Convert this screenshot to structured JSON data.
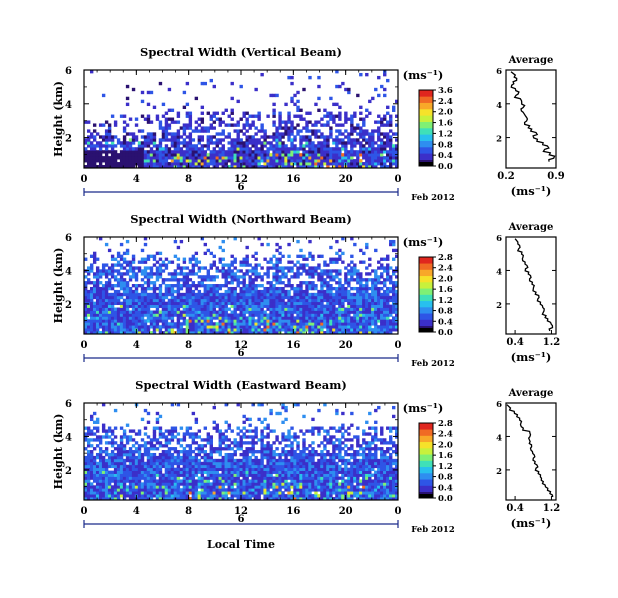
{
  "figure": {
    "xlabel": "Local Time",
    "date_label": "Feb 2012",
    "day_label": "6",
    "colorbar_unit": "(ms⁻¹)"
  },
  "chart_data": [
    {
      "type": "heatmap",
      "title": "Spectral Width (Vertical Beam)",
      "ylabel": "Height (km)",
      "xlim": [
        0,
        24
      ],
      "ylim": [
        0.2,
        6
      ],
      "x_ticks": [
        "0",
        "4",
        "8",
        "12",
        "16",
        "20",
        "0"
      ],
      "y_ticks": [
        "6",
        "4",
        "2"
      ],
      "colorbar": {
        "min": 0.0,
        "max": 3.6,
        "ticks": [
          "3.6",
          "2.4",
          "2.0",
          "1.6",
          "1.2",
          "0.8",
          "0.4",
          "0.0"
        ]
      },
      "data_profile": {
        "low_top_km": 1.3,
        "mid_top_km": 3.6,
        "typical": 0.5
      },
      "average": {
        "title": "Average",
        "xlabel": "(ms⁻¹)",
        "xlim": [
          0.2,
          0.9
        ],
        "x_ticks": [
          "0.2",
          "0.9"
        ],
        "y_ticks": [
          "6",
          "4",
          "2"
        ],
        "height": [
          5.9,
          5.7,
          5.5,
          5.3,
          5.1,
          4.9,
          4.7,
          4.5,
          4.3,
          4.1,
          3.9,
          3.7,
          3.5,
          3.3,
          3.1,
          2.9,
          2.7,
          2.5,
          2.3,
          2.1,
          1.9,
          1.7,
          1.5,
          1.3,
          1.1,
          0.9,
          0.7
        ],
        "value": [
          0.27,
          0.33,
          0.35,
          0.3,
          0.28,
          0.33,
          0.38,
          0.34,
          0.4,
          0.42,
          0.46,
          0.41,
          0.44,
          0.47,
          0.5,
          0.46,
          0.53,
          0.56,
          0.62,
          0.58,
          0.64,
          0.72,
          0.78,
          0.74,
          0.82,
          0.88,
          0.8
        ]
      }
    },
    {
      "type": "heatmap",
      "title": "Spectral Width (Northward Beam)",
      "ylabel": "Height (km)",
      "xlim": [
        0,
        24
      ],
      "ylim": [
        0.2,
        6
      ],
      "x_ticks": [
        "0",
        "4",
        "8",
        "12",
        "16",
        "20",
        "0"
      ],
      "y_ticks": [
        "6",
        "4",
        "2"
      ],
      "colorbar": {
        "min": 0.0,
        "max": 2.8,
        "ticks": [
          "2.8",
          "2.4",
          "2.0",
          "1.6",
          "1.2",
          "0.8",
          "0.4",
          "0.0"
        ]
      },
      "data_profile": {
        "low_top_km": 2.6,
        "mid_top_km": 5.0,
        "typical": 0.55
      },
      "average": {
        "title": "Average",
        "xlabel": "(ms⁻¹)",
        "xlim": [
          0.2,
          1.3
        ],
        "x_ticks": [
          "0.4",
          "1.2"
        ],
        "y_ticks": [
          "6",
          "4",
          "2"
        ],
        "height": [
          5.9,
          5.7,
          5.5,
          5.3,
          5.1,
          4.9,
          4.7,
          4.5,
          4.3,
          4.1,
          3.9,
          3.7,
          3.5,
          3.3,
          3.1,
          2.9,
          2.7,
          2.5,
          2.3,
          2.1,
          1.9,
          1.7,
          1.5,
          1.3,
          1.1,
          0.9,
          0.7,
          0.5
        ],
        "value": [
          0.4,
          0.46,
          0.5,
          0.48,
          0.55,
          0.58,
          0.56,
          0.62,
          0.66,
          0.63,
          0.7,
          0.74,
          0.72,
          0.78,
          0.82,
          0.8,
          0.86,
          0.92,
          0.9,
          0.96,
          1.0,
          1.04,
          1.02,
          1.08,
          1.12,
          1.18,
          1.22,
          1.15
        ]
      }
    },
    {
      "type": "heatmap",
      "title": "Spectral Width (Eastward Beam)",
      "ylabel": "Height (km)",
      "xlim": [
        0,
        24
      ],
      "ylim": [
        0.2,
        6
      ],
      "x_ticks": [
        "0",
        "4",
        "8",
        "12",
        "16",
        "20",
        "0"
      ],
      "y_ticks": [
        "6",
        "4",
        "2"
      ],
      "colorbar": {
        "min": 0.0,
        "max": 2.8,
        "ticks": [
          "2.8",
          "2.4",
          "2.0",
          "1.6",
          "1.2",
          "0.8",
          "0.4",
          "0.0"
        ]
      },
      "data_profile": {
        "low_top_km": 2.6,
        "mid_top_km": 4.6,
        "typical": 0.55
      },
      "average": {
        "title": "Average",
        "xlabel": "(ms⁻¹)",
        "xlim": [
          0.2,
          1.3
        ],
        "x_ticks": [
          "0.4",
          "1.2"
        ],
        "y_ticks": [
          "6",
          "4",
          "2"
        ],
        "height": [
          5.9,
          5.7,
          5.5,
          5.3,
          5.1,
          4.9,
          4.7,
          4.5,
          4.3,
          4.1,
          3.9,
          3.7,
          3.5,
          3.3,
          3.1,
          2.9,
          2.7,
          2.5,
          2.3,
          2.1,
          1.9,
          1.7,
          1.5,
          1.3,
          1.1,
          0.9,
          0.7,
          0.5
        ],
        "value": [
          0.22,
          0.3,
          0.38,
          0.45,
          0.5,
          0.54,
          0.52,
          0.58,
          0.72,
          0.74,
          0.7,
          0.73,
          0.76,
          0.74,
          0.78,
          0.82,
          0.8,
          0.84,
          0.88,
          0.86,
          0.92,
          0.96,
          0.98,
          1.02,
          1.06,
          1.12,
          1.18,
          1.22
        ]
      }
    }
  ]
}
